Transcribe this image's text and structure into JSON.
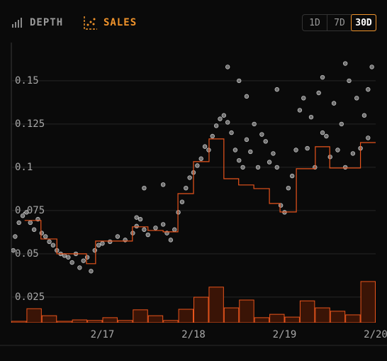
{
  "header": {
    "tabs": [
      "DEPTH",
      "SALES"
    ],
    "ranges": [
      "1D",
      "7D",
      "30D"
    ]
  },
  "chart_data": {
    "type": "scatter",
    "xlim": [
      0,
      96
    ],
    "xticks": [
      {
        "value": 24,
        "label": "2/17"
      },
      {
        "value": 48,
        "label": "2/18"
      },
      {
        "value": 72,
        "label": "2/19"
      },
      {
        "value": 96,
        "label": "2/20"
      }
    ],
    "ylim": [
      0.0102,
      0.1721
    ],
    "yticks": [
      0.025,
      0.05,
      0.075,
      0.1,
      0.125,
      0.15
    ],
    "y2lim": [
      0,
      100
    ],
    "grid": true,
    "series": [
      {
        "type": "bar",
        "axis": "y2",
        "color": "#e8541c",
        "x": [
          0,
          4,
          8,
          12,
          16,
          20,
          24,
          28,
          32,
          36,
          40,
          44,
          48,
          52,
          56,
          60,
          64,
          68,
          72,
          76,
          80,
          84,
          88,
          92
        ],
        "values": [
          0.5,
          5,
          2.5,
          0.5,
          1,
          0.8,
          1.8,
          0.8,
          4.6,
          2.5,
          0.8,
          4.8,
          9.1,
          12.7,
          5.3,
          8.1,
          1.8,
          3,
          2,
          7.8,
          5.3,
          4.1,
          2.8,
          14.7
        ]
      },
      {
        "type": "scatter",
        "color": "#8a8a8a",
        "x": [
          0.5,
          1,
          2,
          3,
          4,
          5,
          6,
          7,
          8,
          9,
          10,
          11,
          12,
          13,
          14,
          15,
          16,
          17,
          18,
          19,
          20,
          21,
          22,
          23,
          24,
          26,
          28,
          30,
          32,
          33,
          34,
          35,
          36,
          38,
          40,
          41,
          42,
          43,
          44,
          45,
          46,
          47,
          48,
          49,
          50,
          51,
          52,
          53,
          54,
          55,
          56,
          57,
          58,
          59,
          60,
          61,
          62,
          63,
          64,
          65,
          66,
          67,
          68,
          69,
          70,
          71,
          72,
          73,
          74,
          75,
          76,
          77,
          78,
          79,
          80,
          81,
          82,
          83,
          84,
          85,
          86,
          87,
          88,
          89,
          90,
          91,
          92,
          93,
          94,
          95,
          35,
          33,
          40,
          62,
          60,
          57,
          70,
          82,
          88,
          94
        ],
        "values": [
          0.052,
          0.06,
          0.068,
          0.072,
          0.074,
          0.068,
          0.064,
          0.07,
          0.062,
          0.06,
          0.057,
          0.055,
          0.052,
          0.05,
          0.049,
          0.048,
          0.045,
          0.05,
          0.042,
          0.046,
          0.048,
          0.04,
          0.052,
          0.055,
          0.056,
          0.057,
          0.06,
          0.058,
          0.062,
          0.066,
          0.07,
          0.064,
          0.061,
          0.065,
          0.067,
          0.062,
          0.058,
          0.064,
          0.074,
          0.08,
          0.088,
          0.094,
          0.097,
          0.101,
          0.105,
          0.112,
          0.11,
          0.118,
          0.124,
          0.128,
          0.13,
          0.126,
          0.12,
          0.11,
          0.104,
          0.1,
          0.116,
          0.109,
          0.125,
          0.1,
          0.119,
          0.115,
          0.103,
          0.108,
          0.1,
          0.078,
          0.074,
          0.088,
          0.095,
          0.11,
          0.133,
          0.14,
          0.111,
          0.129,
          0.1,
          0.143,
          0.12,
          0.118,
          0.106,
          0.137,
          0.11,
          0.125,
          0.1,
          0.15,
          0.108,
          0.14,
          0.111,
          0.13,
          0.145,
          0.158,
          0.088,
          0.071,
          0.09,
          0.141,
          0.15,
          0.158,
          0.145,
          0.152,
          0.16,
          0.117
        ]
      },
      {
        "type": "step",
        "color": "#e8541c",
        "x": [
          3.5,
          7.8,
          12,
          19.8,
          22.2,
          31.9,
          36,
          40,
          43.9,
          48,
          52.1,
          56,
          59.9,
          63.9,
          68,
          70.8,
          75.1,
          80.1,
          83.9,
          92,
          96
        ],
        "values": [
          0.0693,
          0.0586,
          0.05,
          0.0443,
          0.0574,
          0.0656,
          0.0635,
          0.0627,
          0.0848,
          0.1033,
          0.1164,
          0.0934,
          0.0898,
          0.0877,
          0.0791,
          0.0742,
          0.0992,
          0.1119,
          0.0996,
          0.1143,
          0.1143
        ]
      }
    ]
  }
}
